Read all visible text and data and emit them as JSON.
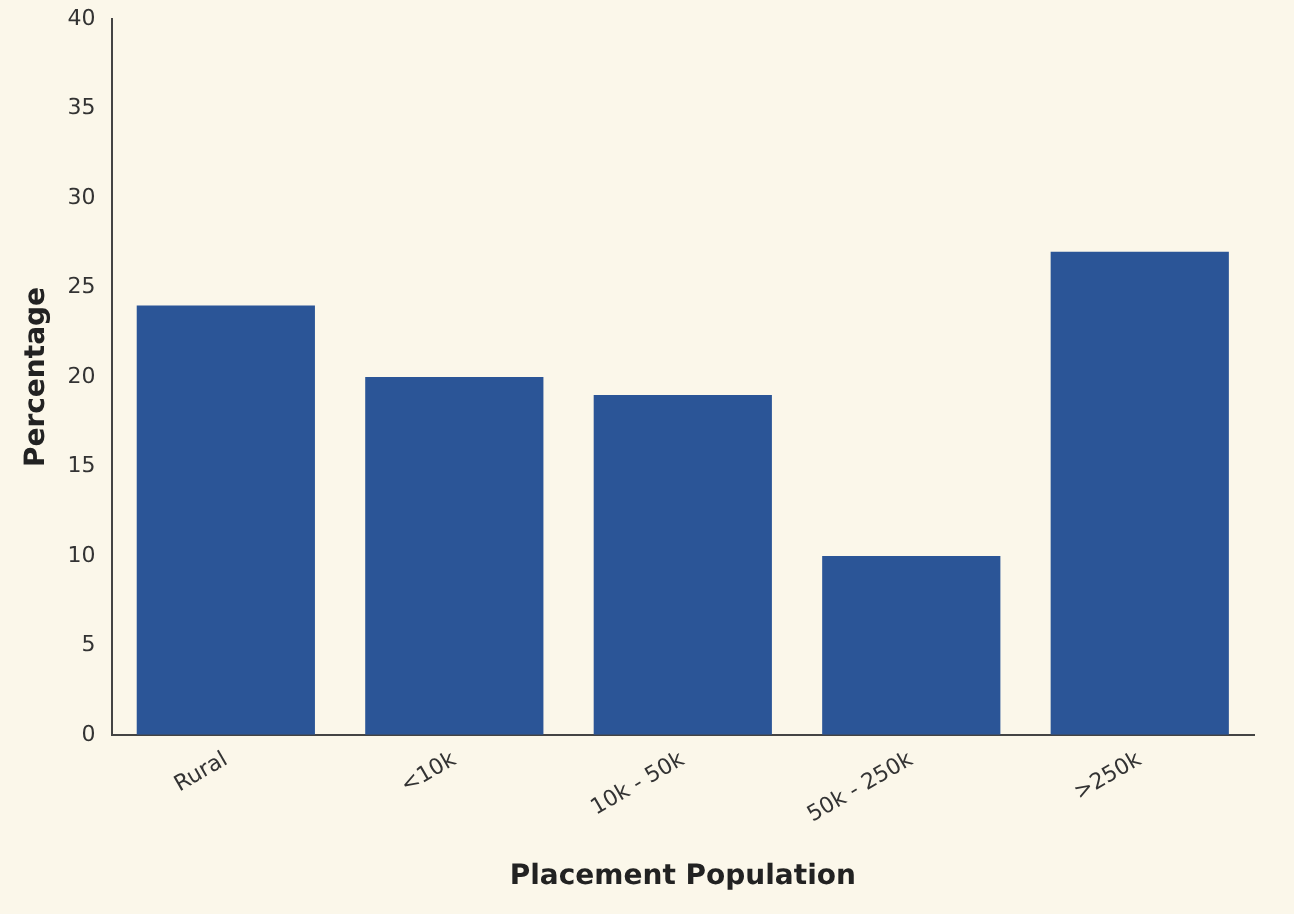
{
  "chart_data": {
    "type": "bar",
    "xlabel": "Placement Population",
    "ylabel": "Percentage",
    "categories": [
      "Rural",
      "<10k",
      "10k - 50k",
      "50k - 250k",
      ">250k"
    ],
    "values": [
      24,
      20,
      19,
      10,
      27
    ],
    "color": "#2b5597",
    "ylim": [
      0,
      40
    ],
    "yticks": [
      0,
      5,
      10,
      15,
      20,
      25,
      30,
      35,
      40
    ],
    "grid": false,
    "legend": false
  }
}
